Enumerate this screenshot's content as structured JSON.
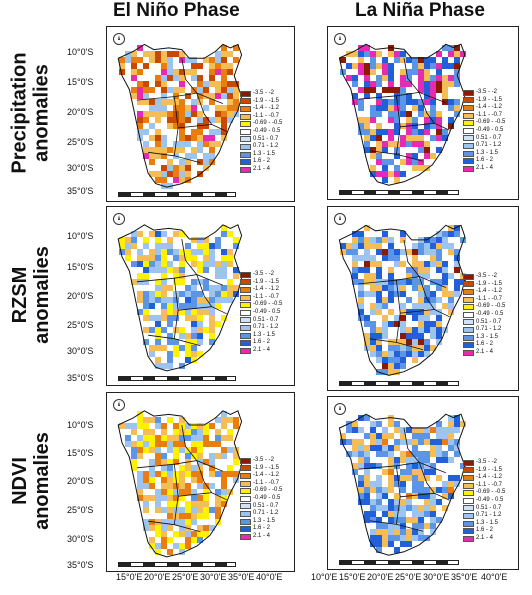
{
  "columns": [
    "El Niño  Phase",
    "La Niña  Phase"
  ],
  "rows": [
    "Precipitation anomalies",
    "RZSM anomalies",
    "NDVI anomalies"
  ],
  "lat_labels": {
    "row1": [
      "10°0'S",
      "15°0'S",
      "20°0'S",
      "25°0'S",
      "30°0'S",
      "35°0'S"
    ],
    "row2": [
      "10°0'S",
      "15°0'S",
      "20°0'S",
      "25°0'S",
      "30°0'S",
      "35°0'S"
    ],
    "row3": [
      "10°0'S",
      "15°0'S",
      "20°0'S",
      "25°0'S",
      "30°0'S",
      "35°0'S"
    ]
  },
  "lon_labels": {
    "left": [
      "15°0'E",
      "20°0'E",
      "25°0'E",
      "30°0'E",
      "35°0'E",
      "40°0'E"
    ],
    "right": [
      "10°0'E",
      "15°0'E",
      "20°0'E",
      "25°0'E",
      "30°0'E",
      "35°0'E",
      "40°0'E"
    ]
  },
  "legend": [
    {
      "label": "-3.5 - -2",
      "color": "#8b1a00"
    },
    {
      "label": "-1.9 - -1.5",
      "color": "#c84a00"
    },
    {
      "label": "-1.4 - -1.2",
      "color": "#e87e10"
    },
    {
      "label": "-1.1 - -0.7",
      "color": "#f5bd55"
    },
    {
      "label": "-0.69 - -0.5",
      "color": "#fff200"
    },
    {
      "label": "-0.49 - 0.5",
      "color": "#ffffff"
    },
    {
      "label": "0.51 - 0.7",
      "color": "#cfe3f7"
    },
    {
      "label": "0.71 - 1.2",
      "color": "#9cc4ef"
    },
    {
      "label": "1.3 - 1.5",
      "color": "#5d95e6"
    },
    {
      "label": "1.6 - 2",
      "color": "#2160d8"
    },
    {
      "label": "2.1 - 4",
      "color": "#e62bb3"
    }
  ],
  "maps": [
    {
      "row": 1,
      "col": 1,
      "dominant": [
        "#f5bd55",
        "#e87e10",
        "#c84a00"
      ],
      "secondary": [
        "#ffffff",
        "#9cc4ef"
      ],
      "accent": "#e62bb3"
    },
    {
      "row": 1,
      "col": 2,
      "dominant": [
        "#2160d8",
        "#e62bb3",
        "#5d95e6"
      ],
      "secondary": [
        "#ffffff",
        "#f5bd55"
      ],
      "accent": "#8b1a00"
    },
    {
      "row": 2,
      "col": 1,
      "dominant": [
        "#9cc4ef",
        "#5d95e6",
        "#ffffff"
      ],
      "secondary": [
        "#f5bd55",
        "#fff200"
      ],
      "accent": "#2160d8"
    },
    {
      "row": 2,
      "col": 2,
      "dominant": [
        "#2160d8",
        "#5d95e6",
        "#9cc4ef"
      ],
      "secondary": [
        "#f5bd55",
        "#ffffff"
      ],
      "accent": "#8b1a00"
    },
    {
      "row": 3,
      "col": 1,
      "dominant": [
        "#f5bd55",
        "#ffffff",
        "#9cc4ef"
      ],
      "secondary": [
        "#e87e10",
        "#fff200"
      ],
      "accent": "#5d95e6"
    },
    {
      "row": 3,
      "col": 2,
      "dominant": [
        "#5d95e6",
        "#2160d8",
        "#9cc4ef"
      ],
      "secondary": [
        "#ffffff",
        "#f5bd55"
      ],
      "accent": "#e87e10"
    }
  ]
}
